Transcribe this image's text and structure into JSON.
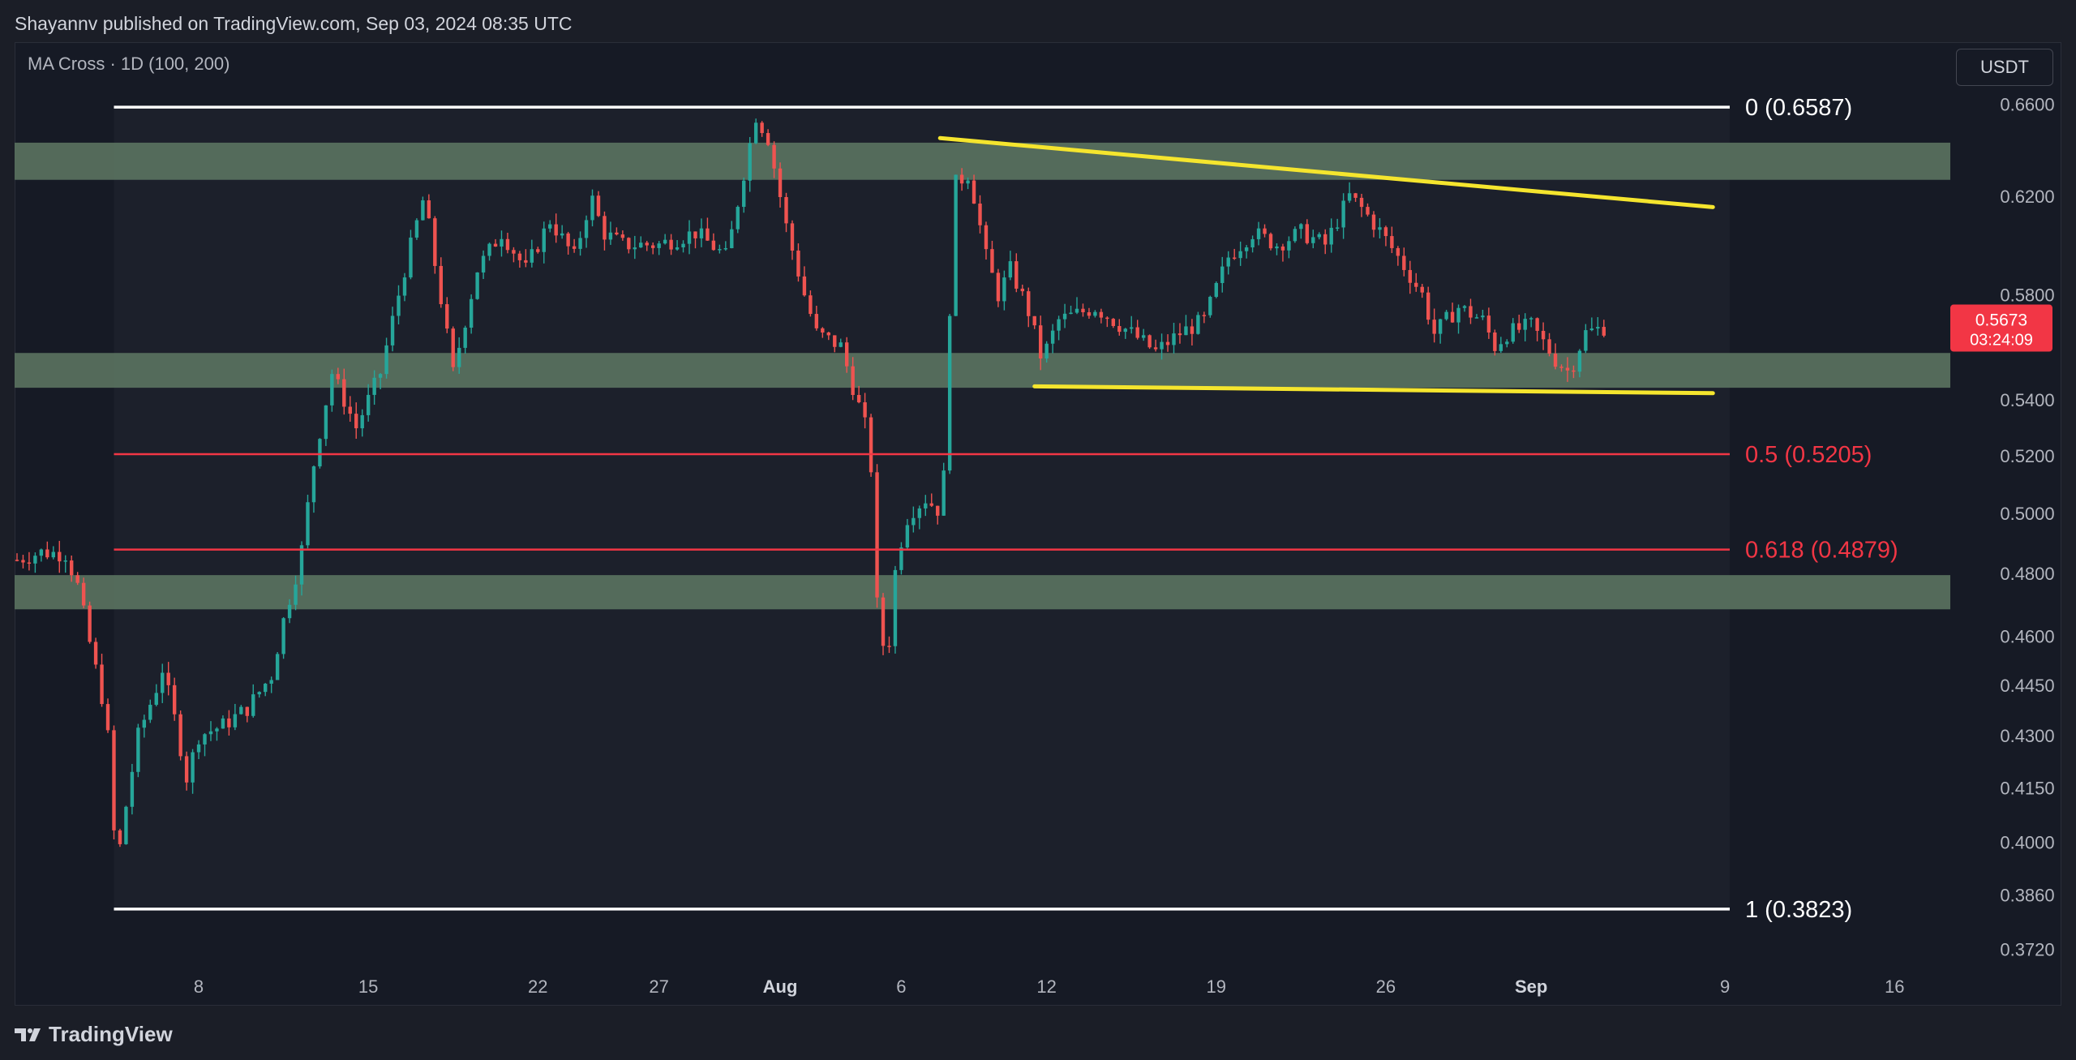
{
  "header": {
    "published": "Shayannv published on TradingView.com, Sep 03, 2024 08:35 UTC"
  },
  "indicator": "MA Cross · 1D (100, 200)",
  "currency_button": "USDT",
  "footer": {
    "brand": "TradingView"
  },
  "colors": {
    "up": "#26a69a",
    "down": "#ef5350",
    "zone": "#5b7360",
    "trendline": "#f5e52e",
    "fib_white": "#ffffff",
    "fib_red": "#f23645",
    "price_tag": "#f23645"
  },
  "chart_data": {
    "type": "candlestick",
    "symbol_quote": "USDT",
    "x_axis_labels": [
      {
        "label": "8",
        "day": 8
      },
      {
        "label": "15",
        "day": 15
      },
      {
        "label": "22",
        "day": 22
      },
      {
        "label": "27",
        "day": 27
      },
      {
        "label": "Aug",
        "day": 32
      },
      {
        "label": "6",
        "day": 37
      },
      {
        "label": "12",
        "day": 43
      },
      {
        "label": "19",
        "day": 50
      },
      {
        "label": "26",
        "day": 57
      },
      {
        "label": "Sep",
        "day": 63
      },
      {
        "label": "9",
        "day": 71
      },
      {
        "label": "16",
        "day": 78
      }
    ],
    "y_axis_labels": [
      "0.6600",
      "0.6200",
      "0.5800",
      "0.5400",
      "0.5200",
      "0.5000",
      "0.4800",
      "0.4600",
      "0.4450",
      "0.4300",
      "0.4150",
      "0.4000",
      "0.3860",
      "0.3720"
    ],
    "y_scale": "log",
    "y_range": [
      0.366,
      0.688
    ],
    "x_range_days": [
      0.4,
      80.3
    ],
    "current_price": {
      "price": "0.5673",
      "countdown": "03:24:09"
    },
    "fib_levels": [
      {
        "label": "0 (0.6587)",
        "value": 0.6587,
        "color": "white"
      },
      {
        "label": "0.5 (0.5205)",
        "value": 0.5205,
        "color": "red"
      },
      {
        "label": "0.618 (0.4879)",
        "value": 0.4879,
        "color": "red"
      },
      {
        "label": "1 (0.3823)",
        "value": 0.3823,
        "color": "white"
      }
    ],
    "fib_range_days": [
      4.5,
      70
    ],
    "zones": [
      {
        "from": 0.627,
        "to": 0.643
      },
      {
        "from": 0.5445,
        "to": 0.5575
      },
      {
        "from": 0.4685,
        "to": 0.4795
      }
    ],
    "trendlines": [
      {
        "from": {
          "day": 38.6,
          "price": 0.645
        },
        "to": {
          "day": 70.5,
          "price": 0.6155
        }
      },
      {
        "from": {
          "day": 42.5,
          "price": 0.545
        },
        "to": {
          "day": 70.5,
          "price": 0.5425
        }
      }
    ],
    "candles_path": [
      [
        0.5,
        0.4845
      ],
      [
        1.5,
        0.487
      ],
      [
        2.5,
        0.4865
      ],
      [
        3,
        0.476
      ],
      [
        3.5,
        0.458
      ],
      [
        4.2,
        0.435
      ],
      [
        4.6,
        0.392
      ],
      [
        5.0,
        0.41
      ],
      [
        5.5,
        0.43
      ],
      [
        6.3,
        0.445
      ],
      [
        6.5,
        0.45
      ],
      [
        7.0,
        0.435
      ],
      [
        7.5,
        0.418
      ],
      [
        8.0,
        0.43
      ],
      [
        9.0,
        0.433
      ],
      [
        10.0,
        0.438
      ],
      [
        11.0,
        0.448
      ],
      [
        11.5,
        0.465
      ],
      [
        12.2,
        0.485
      ],
      [
        12.8,
        0.52
      ],
      [
        13.5,
        0.55
      ],
      [
        14.5,
        0.53
      ],
      [
        15.5,
        0.55
      ],
      [
        16.5,
        0.59
      ],
      [
        17.3,
        0.62
      ],
      [
        17.7,
        0.595
      ],
      [
        18.5,
        0.55
      ],
      [
        19.5,
        0.59
      ],
      [
        20.5,
        0.605
      ],
      [
        21.5,
        0.59
      ],
      [
        22.5,
        0.61
      ],
      [
        23.5,
        0.595
      ],
      [
        24.2,
        0.62
      ],
      [
        24.7,
        0.605
      ],
      [
        25.5,
        0.6
      ],
      [
        27.0,
        0.6
      ],
      [
        28.5,
        0.605
      ],
      [
        29.8,
        0.595
      ],
      [
        30.5,
        0.63
      ],
      [
        31.0,
        0.655
      ],
      [
        31.5,
        0.645
      ],
      [
        32.3,
        0.605
      ],
      [
        33.0,
        0.58
      ],
      [
        33.5,
        0.565
      ],
      [
        34.5,
        0.56
      ],
      [
        35.0,
        0.545
      ],
      [
        35.7,
        0.525
      ],
      [
        36.0,
        0.47
      ],
      [
        36.4,
        0.45
      ],
      [
        36.8,
        0.485
      ],
      [
        37.3,
        0.5
      ],
      [
        38.0,
        0.505
      ],
      [
        38.7,
        0.5
      ],
      [
        39.2,
        0.625
      ],
      [
        39.8,
        0.63
      ],
      [
        40.5,
        0.595
      ],
      [
        41.0,
        0.58
      ],
      [
        41.5,
        0.59
      ],
      [
        42.2,
        0.575
      ],
      [
        42.8,
        0.555
      ],
      [
        43.5,
        0.57
      ],
      [
        45.0,
        0.575
      ],
      [
        46.5,
        0.565
      ],
      [
        47.5,
        0.558
      ],
      [
        48.5,
        0.565
      ],
      [
        49.5,
        0.57
      ],
      [
        50.5,
        0.595
      ],
      [
        51.5,
        0.605
      ],
      [
        52.5,
        0.6
      ],
      [
        53.5,
        0.605
      ],
      [
        54.5,
        0.6
      ],
      [
        55.5,
        0.62
      ],
      [
        56.0,
        0.615
      ],
      [
        56.8,
        0.605
      ],
      [
        57.5,
        0.595
      ],
      [
        58.5,
        0.58
      ],
      [
        59.0,
        0.565
      ],
      [
        60.0,
        0.575
      ],
      [
        61.0,
        0.57
      ],
      [
        61.5,
        0.56
      ],
      [
        62.0,
        0.565
      ],
      [
        63.0,
        0.568
      ],
      [
        64.0,
        0.555
      ],
      [
        64.6,
        0.55
      ],
      [
        65.2,
        0.565
      ],
      [
        66.0,
        0.5673
      ]
    ]
  }
}
